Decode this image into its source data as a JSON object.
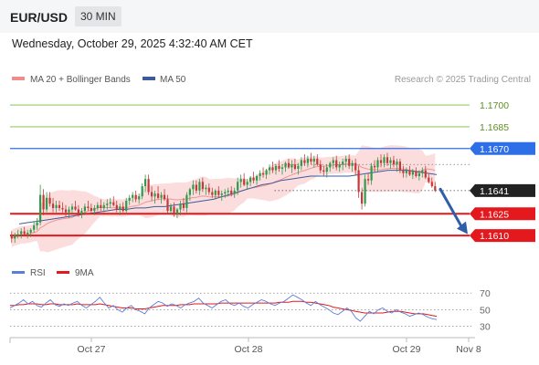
{
  "header": {
    "symbol": "EUR/USD",
    "interval": "30 MIN",
    "datetime": "Wednesday, October 29, 2025 4:32:40 AM CET"
  },
  "colors": {
    "bull": "#2e9a4a",
    "bear": "#c43a3a",
    "ma20": "#f08c8c",
    "band": "#fbd2d2",
    "ma50": "#3d5b9c",
    "resistance_green": "#7cba3c",
    "resistance_blue": "#2e6fe8",
    "support_red": "#e3191d",
    "arrow": "#2f5ea8",
    "rsi": "#5b7fd6",
    "rsi_ma": "#e3191d",
    "last_label": "#222222"
  },
  "chart_data": [
    {
      "type": "candlestick",
      "legend": [
        {
          "label": "MA 20 + Bollinger Bands",
          "color": "#f08c8c"
        },
        {
          "label": "MA 50",
          "color": "#3d5b9c"
        }
      ],
      "credit": "Research © 2025 Trading Central",
      "ylim": [
        1.1595,
        1.1712
      ],
      "x_ticks": [
        "Oct 27",
        "Oct 28",
        "Oct 29",
        "Nov 8"
      ],
      "levels": [
        {
          "value": 1.17,
          "label": "1.1700",
          "color": "#7cba3c",
          "style": "line"
        },
        {
          "value": 1.1685,
          "label": "1.1685",
          "color": "#7cba3c",
          "style": "line"
        },
        {
          "value": 1.167,
          "label": "1.1670",
          "color": "#2e6fe8",
          "style": "tag"
        },
        {
          "value": 1.1641,
          "label": "1.1641",
          "color": "#222222",
          "style": "last"
        },
        {
          "value": 1.1625,
          "label": "1.1625",
          "color": "#e3191d",
          "style": "tag"
        },
        {
          "value": 1.161,
          "label": "1.1610",
          "color": "#e3191d",
          "style": "tag"
        }
      ],
      "forecast_arrow": {
        "from": 1.1642,
        "to": 1.1611
      },
      "candles": [
        [
          1.161,
          1.1613,
          1.1605,
          1.1608
        ],
        [
          1.1608,
          1.1612,
          1.1605,
          1.161
        ],
        [
          1.161,
          1.1614,
          1.1608,
          1.1611
        ],
        [
          1.1611,
          1.1615,
          1.1608,
          1.1613
        ],
        [
          1.1613,
          1.1616,
          1.161,
          1.1611
        ],
        [
          1.1611,
          1.1614,
          1.1608,
          1.1612
        ],
        [
          1.1612,
          1.1615,
          1.1609,
          1.1614
        ],
        [
          1.1614,
          1.162,
          1.1612,
          1.1617
        ],
        [
          1.1617,
          1.1622,
          1.1614,
          1.1619
        ],
        [
          1.1619,
          1.1645,
          1.1617,
          1.1638
        ],
        [
          1.1638,
          1.1642,
          1.1624,
          1.1628
        ],
        [
          1.1628,
          1.164,
          1.1626,
          1.1636
        ],
        [
          1.1636,
          1.164,
          1.163,
          1.1632
        ],
        [
          1.1632,
          1.1636,
          1.1626,
          1.1629
        ],
        [
          1.1629,
          1.1634,
          1.1626,
          1.1631
        ],
        [
          1.1631,
          1.1634,
          1.1627,
          1.1629
        ],
        [
          1.1629,
          1.1633,
          1.1626,
          1.1628
        ],
        [
          1.1628,
          1.1631,
          1.1623,
          1.1626
        ],
        [
          1.1626,
          1.163,
          1.1622,
          1.1628
        ],
        [
          1.1628,
          1.1632,
          1.1625,
          1.163
        ],
        [
          1.163,
          1.1634,
          1.1627,
          1.1628
        ],
        [
          1.1628,
          1.1631,
          1.1623,
          1.1625
        ],
        [
          1.1625,
          1.1629,
          1.1622,
          1.1627
        ],
        [
          1.1627,
          1.1632,
          1.1624,
          1.163
        ],
        [
          1.163,
          1.1634,
          1.1627,
          1.1629
        ],
        [
          1.1629,
          1.1632,
          1.1625,
          1.1627
        ],
        [
          1.1627,
          1.1631,
          1.1624,
          1.1629
        ],
        [
          1.1629,
          1.1633,
          1.1627,
          1.1631
        ],
        [
          1.1631,
          1.1635,
          1.1627,
          1.1629
        ],
        [
          1.1629,
          1.1633,
          1.1626,
          1.1631
        ],
        [
          1.1631,
          1.1635,
          1.1628,
          1.1632
        ],
        [
          1.1632,
          1.1636,
          1.1629,
          1.1633
        ],
        [
          1.1633,
          1.1637,
          1.163,
          1.1631
        ],
        [
          1.1631,
          1.1634,
          1.1626,
          1.1628
        ],
        [
          1.1628,
          1.1632,
          1.1624,
          1.163
        ],
        [
          1.163,
          1.1633,
          1.1626,
          1.1627
        ],
        [
          1.1627,
          1.1636,
          1.1625,
          1.1634
        ],
        [
          1.1634,
          1.1638,
          1.1631,
          1.1636
        ],
        [
          1.1636,
          1.164,
          1.1633,
          1.1638
        ],
        [
          1.1638,
          1.1641,
          1.1633,
          1.1635
        ],
        [
          1.1635,
          1.1639,
          1.1632,
          1.1637
        ],
        [
          1.1637,
          1.1646,
          1.1635,
          1.1644
        ],
        [
          1.1644,
          1.1652,
          1.164,
          1.1649
        ],
        [
          1.1649,
          1.1652,
          1.1638,
          1.164
        ],
        [
          1.164,
          1.1644,
          1.1634,
          1.1637
        ],
        [
          1.1637,
          1.1641,
          1.1632,
          1.1639
        ],
        [
          1.1639,
          1.1644,
          1.1635,
          1.1636
        ],
        [
          1.1636,
          1.164,
          1.1632,
          1.1638
        ],
        [
          1.1638,
          1.1642,
          1.1634,
          1.1635
        ],
        [
          1.1635,
          1.1638,
          1.1625,
          1.1627
        ],
        [
          1.1627,
          1.1632,
          1.1625,
          1.163
        ],
        [
          1.163,
          1.1633,
          1.1623,
          1.1625
        ],
        [
          1.1625,
          1.1629,
          1.1622,
          1.1628
        ],
        [
          1.1628,
          1.1634,
          1.1624,
          1.1632
        ],
        [
          1.1632,
          1.1636,
          1.1627,
          1.1629
        ],
        [
          1.1629,
          1.164,
          1.1626,
          1.1638
        ],
        [
          1.1638,
          1.1643,
          1.1634,
          1.1642
        ],
        [
          1.1642,
          1.1648,
          1.1638,
          1.1645
        ],
        [
          1.1645,
          1.1648,
          1.1639,
          1.1641
        ],
        [
          1.1641,
          1.1649,
          1.1638,
          1.1647
        ],
        [
          1.1647,
          1.165,
          1.164,
          1.1642
        ],
        [
          1.1642,
          1.1645,
          1.1638,
          1.1643
        ],
        [
          1.1643,
          1.1646,
          1.1638,
          1.164
        ],
        [
          1.164,
          1.1643,
          1.1636,
          1.1638
        ],
        [
          1.1638,
          1.1642,
          1.1635,
          1.1641
        ],
        [
          1.1641,
          1.1644,
          1.1636,
          1.1638
        ],
        [
          1.1638,
          1.1641,
          1.1634,
          1.1639
        ],
        [
          1.1639,
          1.1642,
          1.1636,
          1.164
        ],
        [
          1.164,
          1.1643,
          1.1637,
          1.1641
        ],
        [
          1.1641,
          1.1644,
          1.1637,
          1.1639
        ],
        [
          1.1639,
          1.1643,
          1.1636,
          1.1641
        ],
        [
          1.1641,
          1.165,
          1.1638,
          1.1647
        ],
        [
          1.1647,
          1.1652,
          1.1643,
          1.1649
        ],
        [
          1.1649,
          1.1653,
          1.1644,
          1.1645
        ],
        [
          1.1645,
          1.1649,
          1.1642,
          1.1647
        ],
        [
          1.1647,
          1.1651,
          1.1644,
          1.165
        ],
        [
          1.165,
          1.1654,
          1.1646,
          1.1648
        ],
        [
          1.1648,
          1.1652,
          1.1645,
          1.1651
        ],
        [
          1.1651,
          1.1655,
          1.1648,
          1.1653
        ],
        [
          1.1653,
          1.1657,
          1.165,
          1.1652
        ],
        [
          1.1652,
          1.1656,
          1.1649,
          1.1655
        ],
        [
          1.1655,
          1.1659,
          1.1652,
          1.1657
        ],
        [
          1.1657,
          1.1661,
          1.1653,
          1.1655
        ],
        [
          1.1655,
          1.1659,
          1.1652,
          1.1658
        ],
        [
          1.1658,
          1.1662,
          1.1654,
          1.1656
        ],
        [
          1.1656,
          1.1659,
          1.1652,
          1.1657
        ],
        [
          1.1657,
          1.1661,
          1.1654,
          1.166
        ],
        [
          1.166,
          1.1663,
          1.1656,
          1.1657
        ],
        [
          1.1657,
          1.1662,
          1.1653,
          1.1659
        ],
        [
          1.1659,
          1.1663,
          1.1655,
          1.1656
        ],
        [
          1.1656,
          1.166,
          1.1652,
          1.1658
        ],
        [
          1.1658,
          1.1664,
          1.1655,
          1.1662
        ],
        [
          1.1662,
          1.1666,
          1.1658,
          1.166
        ],
        [
          1.166,
          1.1665,
          1.1657,
          1.1663
        ],
        [
          1.1663,
          1.1667,
          1.1659,
          1.1661
        ],
        [
          1.1661,
          1.1665,
          1.1657,
          1.1663
        ],
        [
          1.1663,
          1.1666,
          1.1658,
          1.1659
        ],
        [
          1.1659,
          1.1662,
          1.1653,
          1.1655
        ],
        [
          1.1655,
          1.1658,
          1.1651,
          1.1654
        ],
        [
          1.1654,
          1.1659,
          1.165,
          1.1657
        ],
        [
          1.1657,
          1.1661,
          1.1654,
          1.166
        ],
        [
          1.166,
          1.1664,
          1.1656,
          1.1662
        ],
        [
          1.1662,
          1.1665,
          1.1655,
          1.1657
        ],
        [
          1.1657,
          1.1661,
          1.1654,
          1.1659
        ],
        [
          1.1659,
          1.1663,
          1.1655,
          1.1661
        ],
        [
          1.1661,
          1.1665,
          1.1657,
          1.1663
        ],
        [
          1.1663,
          1.1666,
          1.1656,
          1.1658
        ],
        [
          1.1658,
          1.1662,
          1.1654,
          1.166
        ],
        [
          1.166,
          1.1663,
          1.1652,
          1.1655
        ],
        [
          1.1655,
          1.1658,
          1.1636,
          1.164
        ],
        [
          1.164,
          1.1643,
          1.1628,
          1.1632
        ],
        [
          1.1632,
          1.1652,
          1.163,
          1.1649
        ],
        [
          1.1649,
          1.1653,
          1.1645,
          1.1648
        ],
        [
          1.1648,
          1.166,
          1.1645,
          1.1658
        ],
        [
          1.1658,
          1.1662,
          1.1654,
          1.1657
        ],
        [
          1.1657,
          1.1664,
          1.1654,
          1.1662
        ],
        [
          1.1662,
          1.1666,
          1.1657,
          1.166
        ],
        [
          1.166,
          1.1666,
          1.1657,
          1.1664
        ],
        [
          1.1664,
          1.1667,
          1.1658,
          1.166
        ],
        [
          1.166,
          1.1664,
          1.1656,
          1.1662
        ],
        [
          1.1662,
          1.1665,
          1.1657,
          1.1659
        ],
        [
          1.1659,
          1.1663,
          1.1654,
          1.1661
        ],
        [
          1.1661,
          1.1663,
          1.1653,
          1.1655
        ],
        [
          1.1655,
          1.1658,
          1.165,
          1.1653
        ],
        [
          1.1653,
          1.1657,
          1.165,
          1.1655
        ],
        [
          1.1655,
          1.1658,
          1.1651,
          1.1652
        ],
        [
          1.1652,
          1.1656,
          1.1649,
          1.1654
        ],
        [
          1.1654,
          1.1657,
          1.165,
          1.1651
        ],
        [
          1.1651,
          1.1655,
          1.1648,
          1.1653
        ],
        [
          1.1653,
          1.1657,
          1.165,
          1.1655
        ],
        [
          1.1655,
          1.1658,
          1.1649,
          1.165
        ],
        [
          1.165,
          1.1653,
          1.1646,
          1.1647
        ],
        [
          1.1647,
          1.165,
          1.1643,
          1.1644
        ],
        [
          1.1644,
          1.1647,
          1.164,
          1.1641
        ]
      ],
      "ma50": [
        1.1618,
        1.1619,
        1.162,
        1.1621,
        1.1622,
        1.1623,
        1.1624,
        1.1625,
        1.1626,
        1.1627,
        1.1628,
        1.1628,
        1.1629,
        1.1629,
        1.163,
        1.163,
        1.1631,
        1.1632,
        1.1633,
        1.1634,
        1.1635,
        1.1637,
        1.1639,
        1.1641,
        1.1643,
        1.1645,
        1.1646,
        1.1648,
        1.1649,
        1.165,
        1.1651,
        1.1651,
        1.1651,
        1.1651,
        1.1651,
        1.1652,
        1.1653,
        1.1654,
        1.1655,
        1.1655,
        1.1655,
        1.1654,
        1.1653,
        1.1652
      ],
      "rsi_panel": {
        "legend": [
          {
            "label": "RSI",
            "color": "#5b7fd6"
          },
          {
            "label": "9MA",
            "color": "#e3191d"
          }
        ],
        "ylim": [
          25,
          78
        ],
        "ticks": [
          70,
          50,
          30
        ],
        "rsi": [
          52,
          55,
          58,
          62,
          57,
          60,
          55,
          53,
          58,
          62,
          56,
          54,
          57,
          55,
          58,
          60,
          55,
          52,
          56,
          60,
          65,
          58,
          52,
          55,
          50,
          47,
          52,
          55,
          50,
          48,
          45,
          52,
          56,
          60,
          58,
          54,
          57,
          55,
          52,
          56,
          58,
          60,
          64,
          58,
          55,
          52,
          56,
          60,
          62,
          57,
          55,
          58,
          54,
          52,
          56,
          59,
          62,
          60,
          57,
          55,
          58,
          60,
          64,
          68,
          65,
          62,
          58,
          55,
          60,
          56,
          53,
          50,
          46,
          44,
          48,
          52,
          48,
          40,
          36,
          42,
          48,
          45,
          50,
          52,
          48,
          46,
          50,
          47,
          45,
          42,
          44,
          46,
          44,
          41,
          39,
          38
        ],
        "ma": [
          55,
          55,
          56,
          56,
          57,
          57,
          57,
          56,
          56,
          57,
          57,
          56,
          56,
          56,
          56,
          57,
          56,
          56,
          56,
          56,
          57,
          56,
          55,
          54,
          53,
          52,
          52,
          52,
          51,
          51,
          51,
          52,
          53,
          54,
          55,
          55,
          55,
          55,
          56,
          56,
          56,
          57,
          57,
          57,
          57,
          57,
          57,
          58,
          58,
          58,
          58,
          58,
          58,
          58,
          58,
          58,
          58,
          58,
          58,
          58,
          59,
          59,
          59,
          60,
          60,
          60,
          59,
          59,
          58,
          57,
          56,
          55,
          53,
          52,
          51,
          50,
          49,
          48,
          47,
          46,
          46,
          46,
          46,
          46,
          47,
          48,
          48,
          48,
          47,
          46,
          45,
          45,
          45,
          44,
          43,
          42
        ]
      }
    }
  ]
}
